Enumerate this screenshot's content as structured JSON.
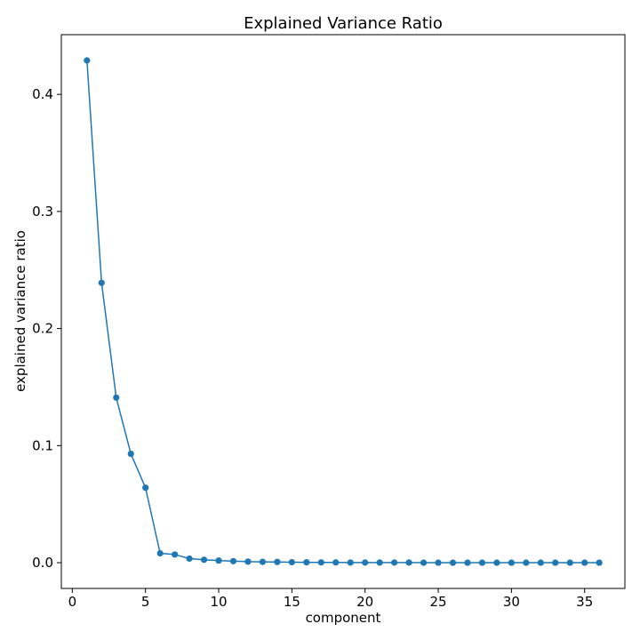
{
  "chart_data": {
    "type": "line",
    "title": "Explained Variance Ratio",
    "xlabel": "component",
    "ylabel": "explained variance ratio",
    "xlim": [
      -0.75,
      37.75
    ],
    "ylim": [
      -0.022,
      0.451
    ],
    "xticks": [
      0,
      5,
      10,
      15,
      20,
      25,
      30,
      35
    ],
    "yticks": [
      0.0,
      0.1,
      0.2,
      0.3,
      0.4
    ],
    "xtick_labels": [
      "0",
      "5",
      "10",
      "15",
      "20",
      "25",
      "30",
      "35"
    ],
    "ytick_labels": [
      "0.0",
      "0.1",
      "0.2",
      "0.3",
      "0.4"
    ],
    "grid": false,
    "series": [
      {
        "color": "#1f77b4",
        "marker": "circle",
        "x": [
          1,
          2,
          3,
          4,
          5,
          6,
          7,
          8,
          9,
          10,
          11,
          12,
          13,
          14,
          15,
          16,
          17,
          18,
          19,
          20,
          21,
          22,
          23,
          24,
          25,
          26,
          27,
          28,
          29,
          30,
          31,
          32,
          33,
          34,
          35,
          36
        ],
        "y": [
          0.429,
          0.239,
          0.141,
          0.093,
          0.064,
          0.008,
          0.007,
          0.0035,
          0.0025,
          0.0018,
          0.0013,
          0.0009,
          0.0007,
          0.0006,
          0.0004,
          0.0003,
          0.0002,
          0.0002,
          0.0001,
          0.0001,
          0.0001,
          0.0001,
          0.0001,
          0.0,
          0.0,
          0.0,
          0.0,
          0.0,
          0.0,
          0.0,
          0.0,
          0.0,
          0.0,
          0.0,
          0.0,
          0.0
        ]
      }
    ]
  }
}
